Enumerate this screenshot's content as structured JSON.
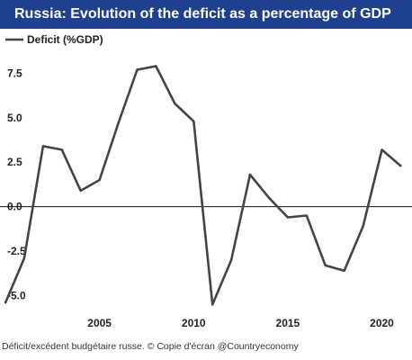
{
  "chart_data": {
    "type": "line",
    "title": "Russia: Evolution of the deficit as a percentage of GDP",
    "xlabel": "",
    "ylabel": "",
    "xlim": [
      2000,
      2021.6
    ],
    "ylim": [
      -7,
      10
    ],
    "y_ticks": [
      7.5,
      5.0,
      2.5,
      0.0,
      -2.5,
      -5.0
    ],
    "y_tick_labels": [
      "7.5",
      "5.0",
      "2.5",
      "0.0",
      "-2.5",
      "-5.0"
    ],
    "x_ticks": [
      2005,
      2010,
      2015,
      2020
    ],
    "x_tick_labels": [
      "2005",
      "2010",
      "2015",
      "2020"
    ],
    "legend_position": "top-left",
    "series": [
      {
        "name": "Deficit (%GDP)",
        "color": "#444444",
        "x": [
          2000,
          2001,
          2002,
          2003,
          2004,
          2005,
          2006,
          2007,
          2008,
          2009,
          2010,
          2011,
          2012,
          2013,
          2014,
          2015,
          2016,
          2017,
          2018,
          2019,
          2020,
          2021
        ],
        "y": [
          -5.4,
          -2.9,
          3.4,
          3.2,
          0.9,
          1.5,
          4.7,
          7.7,
          7.9,
          5.8,
          4.8,
          -5.5,
          -3.0,
          1.8,
          0.5,
          -0.6,
          -0.5,
          -3.3,
          -3.6,
          -1.1,
          3.2,
          2.3
        ]
      }
    ],
    "grid": false
  },
  "caption": "Déficit/excédent budgétaire russe. © Copie d'écran @Countryeconomy"
}
